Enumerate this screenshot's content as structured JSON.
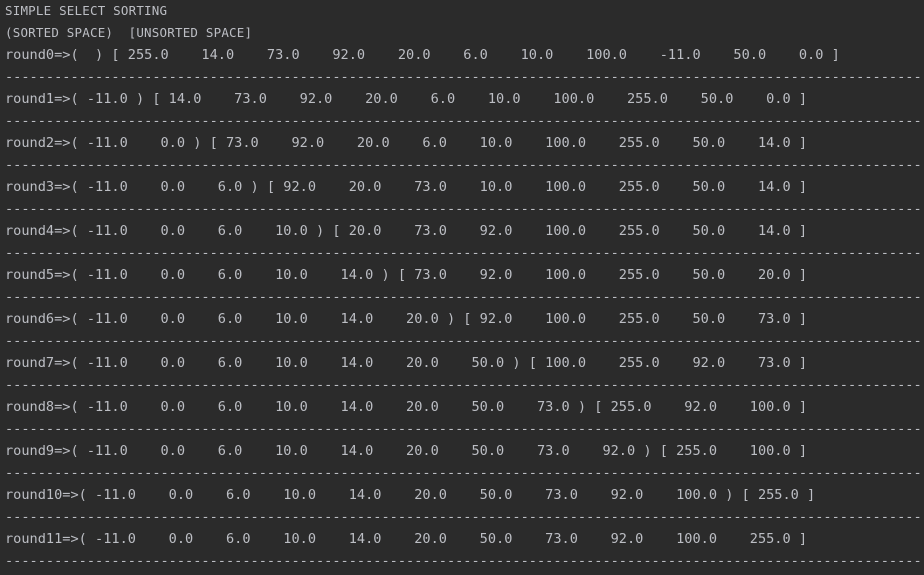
{
  "console": {
    "title": "SIMPLE SELECT SORTING",
    "legend": "(SORTED SPACE)  [UNSORTED SPACE]",
    "separator": "--------------------------------------------------------------------------------------------------------------------------------------------",
    "rows": [
      "round0=>(  ) [ 255.0    14.0    73.0    92.0    20.0    6.0    10.0    100.0    -11.0    50.0    0.0 ]",
      "round1=>( -11.0 ) [ 14.0    73.0    92.0    20.0    6.0    10.0    100.0    255.0    50.0    0.0 ]",
      "round2=>( -11.0    0.0 ) [ 73.0    92.0    20.0    6.0    10.0    100.0    255.0    50.0    14.0 ]",
      "round3=>( -11.0    0.0    6.0 ) [ 92.0    20.0    73.0    10.0    100.0    255.0    50.0    14.0 ]",
      "round4=>( -11.0    0.0    6.0    10.0 ) [ 20.0    73.0    92.0    100.0    255.0    50.0    14.0 ]",
      "round5=>( -11.0    0.0    6.0    10.0    14.0 ) [ 73.0    92.0    100.0    255.0    50.0    20.0 ]",
      "round6=>( -11.0    0.0    6.0    10.0    14.0    20.0 ) [ 92.0    100.0    255.0    50.0    73.0 ]",
      "round7=>( -11.0    0.0    6.0    10.0    14.0    20.0    50.0 ) [ 100.0    255.0    92.0    73.0 ]",
      "round8=>( -11.0    0.0    6.0    10.0    14.0    20.0    50.0    73.0 ) [ 255.0    92.0    100.0 ]",
      "round9=>( -11.0    0.0    6.0    10.0    14.0    20.0    50.0    73.0    92.0 ) [ 255.0    100.0 ]",
      "round10=>( -11.0    0.0    6.0    10.0    14.0    20.0    50.0    73.0    92.0    100.0 ) [ 255.0 ]",
      "round11=>( -11.0    0.0    6.0    10.0    14.0    20.0    50.0    73.0    92.0    100.0    255.0 ]"
    ]
  }
}
